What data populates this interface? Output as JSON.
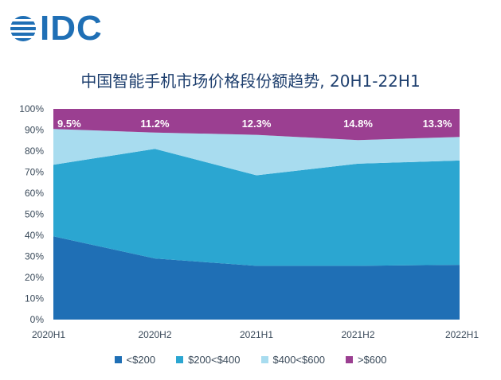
{
  "logo": {
    "text": "IDC",
    "color": "#1f6fb5"
  },
  "chart_data": {
    "type": "area",
    "title": "中国智能手机市场价格段份额趋势, 20H1-22H1",
    "x": [
      "2020H1",
      "2020H2",
      "2021H1",
      "2021H2",
      "2022H1"
    ],
    "ylim": [
      0,
      100
    ],
    "yticks": [
      "0%",
      "10%",
      "20%",
      "30%",
      "40%",
      "50%",
      "60%",
      "70%",
      "80%",
      "90%",
      "100%"
    ],
    "stacked": true,
    "series": [
      {
        "name": "<$200",
        "color": "#1f6fb5",
        "values": [
          39.5,
          29,
          25.5,
          25.5,
          26
        ]
      },
      {
        "name": "$200<$400",
        "color": "#2ba6d1",
        "values": [
          34,
          52,
          43,
          48.5,
          49.5
        ]
      },
      {
        "name": "$400<$600",
        "color": "#a8dcef",
        "values": [
          17,
          7.8,
          19.2,
          11.2,
          11.2
        ]
      },
      {
        "name": ">$600",
        "color": "#9b3f91",
        "values": [
          9.5,
          11.2,
          12.3,
          14.8,
          13.3
        ]
      }
    ],
    "top_labels": [
      "9.5%",
      "11.2%",
      "12.3%",
      "14.8%",
      "13.3%"
    ],
    "legend_position": "bottom"
  }
}
